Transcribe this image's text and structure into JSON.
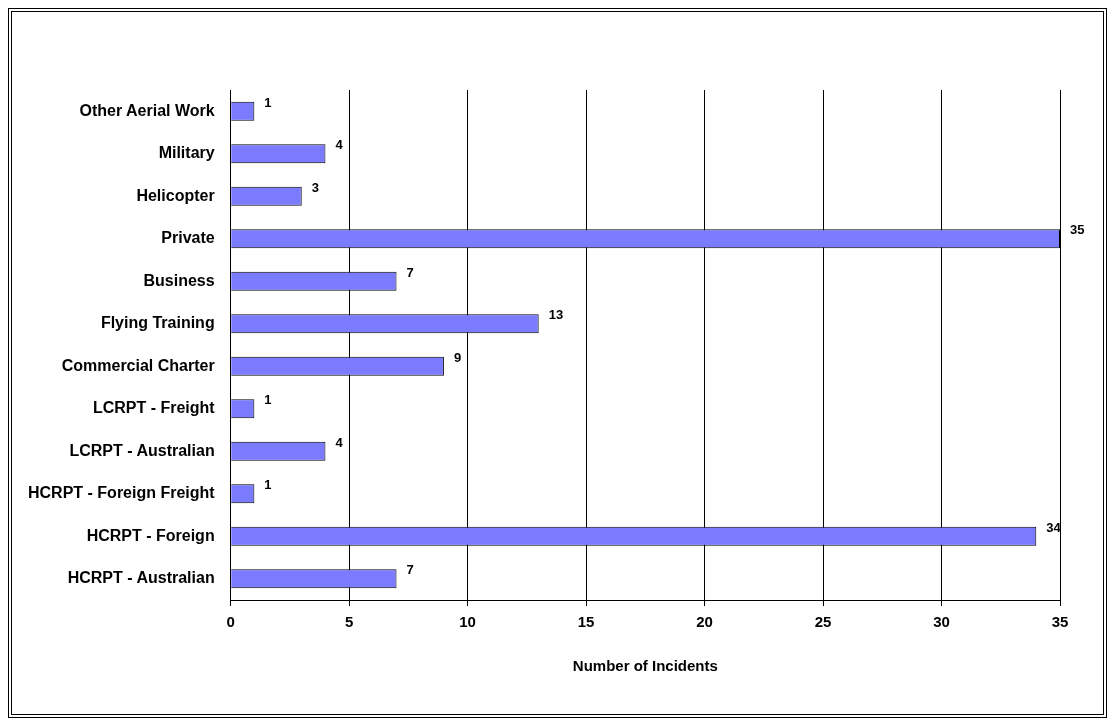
{
  "chart_data": {
    "type": "bar",
    "orientation": "horizontal",
    "xlabel": "Number of Incidents",
    "categories": [
      "Other Aerial Work",
      "Military",
      "Helicopter",
      "Private",
      "Business",
      "Flying Training",
      "Commercial Charter",
      "LCRPT - Freight",
      "LCRPT - Australian",
      "HCRPT - Foreign Freight",
      "HCRPT - Foreign",
      "HCRPT - Australian"
    ],
    "values": [
      1,
      4,
      3,
      35,
      7,
      13,
      9,
      1,
      4,
      1,
      34,
      7
    ],
    "color": "#7b7bff",
    "xlim": [
      0,
      35
    ],
    "xticks": [
      0,
      5,
      10,
      15,
      20,
      25,
      30,
      35
    ],
    "grid": "x",
    "data_labels": true,
    "legend": false
  }
}
